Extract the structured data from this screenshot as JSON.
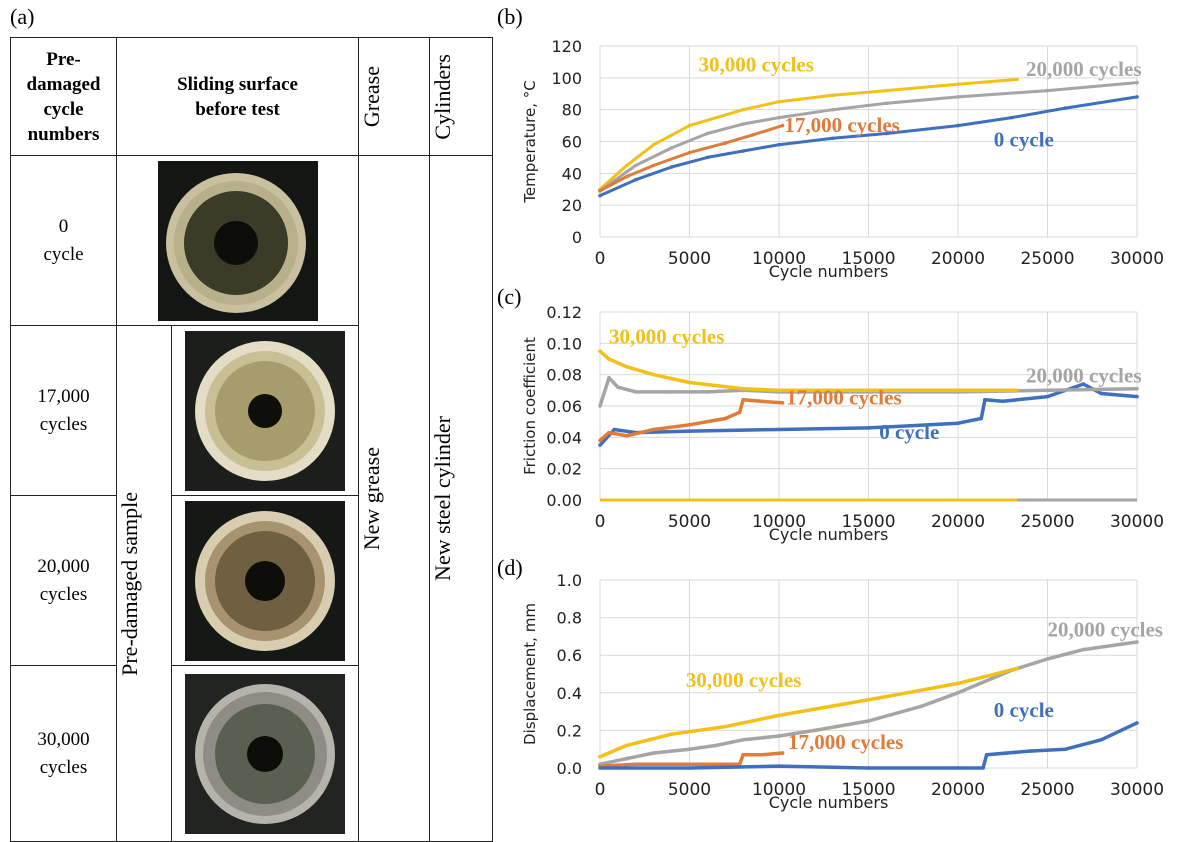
{
  "panels": {
    "a": "(a)",
    "b": "(b)",
    "c": "(c)",
    "d": "(d)"
  },
  "table": {
    "headers": {
      "precycles": "Pre-\ndamaged\ncycle\nnumbers",
      "surface": "Sliding surface\nbefore test",
      "grease": "Grease",
      "cylinders": "Cylinders"
    },
    "rows": [
      {
        "cycles": "0\ncycle"
      },
      {
        "cycles": "17,000\ncycles"
      },
      {
        "cycles": "20,000\ncycles"
      },
      {
        "cycles": "30,000\ncycles"
      }
    ],
    "pre_damaged_label": "Pre-damaged sample",
    "grease_value": "New grease",
    "cylinder_value": "New steel cylinder"
  },
  "colors": {
    "c0": "#3f6fbf",
    "c17": "#e07b39",
    "c20": "#a5a5a5",
    "c30": "#f2c018"
  },
  "chart_data": [
    {
      "id": "b",
      "type": "line",
      "xlabel": "Cycle numbers",
      "ylabel": "Temperature, °C",
      "xlim": [
        0,
        30000
      ],
      "ylim": [
        0,
        120
      ],
      "xticks": [
        0,
        5000,
        10000,
        15000,
        20000,
        25000,
        30000
      ],
      "yticks": [
        0,
        20,
        40,
        60,
        80,
        100,
        120
      ],
      "ytick_labels": [
        "0",
        "20",
        "40",
        "60",
        "80",
        "100",
        "120"
      ],
      "grid": true,
      "series": [
        {
          "name": "30,000 cycles",
          "color_key": "c30",
          "x": [
            0,
            1500,
            3000,
            5000,
            8000,
            10000,
            13000,
            16000,
            20000,
            23300
          ],
          "y": [
            30,
            45,
            58,
            70,
            80,
            85,
            89,
            92,
            96,
            99
          ]
        },
        {
          "name": "20,000 cycles",
          "color_key": "c20",
          "x": [
            0,
            2000,
            4000,
            6000,
            8000,
            10000,
            13000,
            16000,
            20000,
            25000,
            30000
          ],
          "y": [
            29,
            45,
            56,
            65,
            71,
            75,
            80,
            84,
            88,
            92,
            97
          ]
        },
        {
          "name": "17,000 cycles",
          "color_key": "c17",
          "x": [
            0,
            1500,
            3000,
            5000,
            7000,
            8500,
            10200
          ],
          "y": [
            29,
            38,
            45,
            53,
            59,
            64,
            70
          ]
        },
        {
          "name": "0 cycle",
          "color_key": "c0",
          "x": [
            0,
            2000,
            4000,
            6000,
            8000,
            10000,
            13000,
            16000,
            20000,
            23000,
            26000,
            30000
          ],
          "y": [
            26,
            36,
            44,
            50,
            54,
            58,
            62,
            65,
            70,
            75,
            81,
            88
          ]
        }
      ],
      "annotations": [
        {
          "text": "30,000 cycles",
          "color_key": "c30",
          "x": 5500,
          "y": 104
        },
        {
          "text": "20,000 cycles",
          "color_key": "c20",
          "x": 23800,
          "y": 101
        },
        {
          "text": "17,000 cycles",
          "color_key": "c17",
          "x": 10300,
          "y": 66
        },
        {
          "text": "0 cycle",
          "color_key": "c0",
          "x": 22000,
          "y": 57
        }
      ]
    },
    {
      "id": "c",
      "type": "scatter",
      "xlabel": "Cycle numbers",
      "ylabel": "Friction coefficient",
      "xlim": [
        0,
        30000
      ],
      "ylim": [
        0,
        0.12
      ],
      "xticks": [
        0,
        5000,
        10000,
        15000,
        20000,
        25000,
        30000
      ],
      "yticks": [
        0,
        0.02,
        0.04,
        0.06,
        0.08,
        0.1,
        0.12
      ],
      "ytick_labels": [
        "0.00",
        "0.02",
        "0.04",
        "0.06",
        "0.08",
        "0.10",
        "0.12"
      ],
      "grid": true,
      "series": [
        {
          "name": "0 cycle",
          "color_key": "c0",
          "x": [
            0,
            800,
            2000,
            5000,
            10000,
            15000,
            20000,
            21300,
            21500,
            22500,
            25000,
            27000,
            28000,
            30000
          ],
          "y": [
            0.035,
            0.045,
            0.043,
            0.044,
            0.045,
            0.046,
            0.049,
            0.052,
            0.064,
            0.063,
            0.066,
            0.074,
            0.068,
            0.066
          ]
        },
        {
          "name": "17,000 cycles",
          "color_key": "c17",
          "x": [
            0,
            500,
            1500,
            3000,
            5000,
            7000,
            7800,
            8000,
            9000,
            10200
          ],
          "y": [
            0.038,
            0.043,
            0.041,
            0.045,
            0.048,
            0.052,
            0.056,
            0.064,
            0.063,
            0.062
          ]
        },
        {
          "name": "20,000 cycles",
          "color_key": "c20",
          "x": [
            0,
            500,
            1000,
            2000,
            4000,
            6000,
            8000,
            10000,
            15000,
            20000,
            25000,
            30000
          ],
          "y": [
            0.06,
            0.078,
            0.072,
            0.069,
            0.069,
            0.069,
            0.07,
            0.069,
            0.069,
            0.069,
            0.07,
            0.071
          ]
        },
        {
          "name": "30,000 cycles",
          "color_key": "c30",
          "x": [
            0,
            500,
            1500,
            3000,
            5000,
            8000,
            10000,
            15000,
            20000,
            23300
          ],
          "y": [
            0.095,
            0.09,
            0.085,
            0.08,
            0.075,
            0.071,
            0.07,
            0.07,
            0.07,
            0.07
          ]
        }
      ],
      "annotations": [
        {
          "text": "30,000 cycles",
          "color_key": "c30",
          "x": 500,
          "y": 0.1
        },
        {
          "text": "20,000 cycles",
          "color_key": "c20",
          "x": 23800,
          "y": 0.075
        },
        {
          "text": "17,000 cycles",
          "color_key": "c17",
          "x": 10400,
          "y": 0.061
        },
        {
          "text": "0 cycle",
          "color_key": "c0",
          "x": 15600,
          "y": 0.039
        }
      ]
    },
    {
      "id": "d",
      "type": "scatter",
      "xlabel": "Cycle numbers",
      "ylabel": "Displacement, mm",
      "xlim": [
        0,
        30000
      ],
      "ylim": [
        0,
        1.0
      ],
      "xticks": [
        0,
        5000,
        10000,
        15000,
        20000,
        25000,
        30000
      ],
      "yticks": [
        0,
        0.2,
        0.4,
        0.6,
        0.8,
        1.0
      ],
      "ytick_labels": [
        "0.0",
        "0.2",
        "0.4",
        "0.6",
        "0.8",
        "1.0"
      ],
      "grid": true,
      "series": [
        {
          "name": "20,000 cycles",
          "color_key": "c20",
          "x": [
            0,
            1500,
            3000,
            5000,
            6500,
            8000,
            10000,
            12000,
            15000,
            18000,
            20000,
            23000,
            25000,
            27000,
            30000
          ],
          "y": [
            0.02,
            0.05,
            0.08,
            0.1,
            0.12,
            0.15,
            0.17,
            0.2,
            0.25,
            0.33,
            0.4,
            0.52,
            0.58,
            0.63,
            0.67
          ]
        },
        {
          "name": "30,000 cycles",
          "color_key": "c30",
          "x": [
            0,
            1500,
            4000,
            7000,
            10000,
            13000,
            16000,
            20000,
            23300
          ],
          "y": [
            0.06,
            0.12,
            0.18,
            0.22,
            0.28,
            0.33,
            0.38,
            0.45,
            0.53
          ]
        },
        {
          "name": "17,000 cycles",
          "color_key": "c17",
          "x": [
            0,
            2000,
            5000,
            7800,
            8000,
            9000,
            10200
          ],
          "y": [
            0.01,
            0.02,
            0.02,
            0.02,
            0.07,
            0.07,
            0.08
          ]
        },
        {
          "name": "0 cycle",
          "color_key": "c0",
          "x": [
            0,
            5000,
            10000,
            15000,
            20000,
            21400,
            21600,
            24000,
            26000,
            28000,
            30000
          ],
          "y": [
            0,
            0,
            0.01,
            0,
            0,
            0,
            0.07,
            0.09,
            0.1,
            0.15,
            0.24
          ]
        }
      ],
      "annotations": [
        {
          "text": "30,000 cycles",
          "color_key": "c30",
          "x": 4800,
          "y": 0.43
        },
        {
          "text": "20,000 cycles",
          "color_key": "c20",
          "x": 25000,
          "y": 0.7
        },
        {
          "text": "17,000 cycles",
          "color_key": "c17",
          "x": 10500,
          "y": 0.1
        },
        {
          "text": "0 cycle",
          "color_key": "c0",
          "x": 22000,
          "y": 0.27
        }
      ]
    }
  ]
}
